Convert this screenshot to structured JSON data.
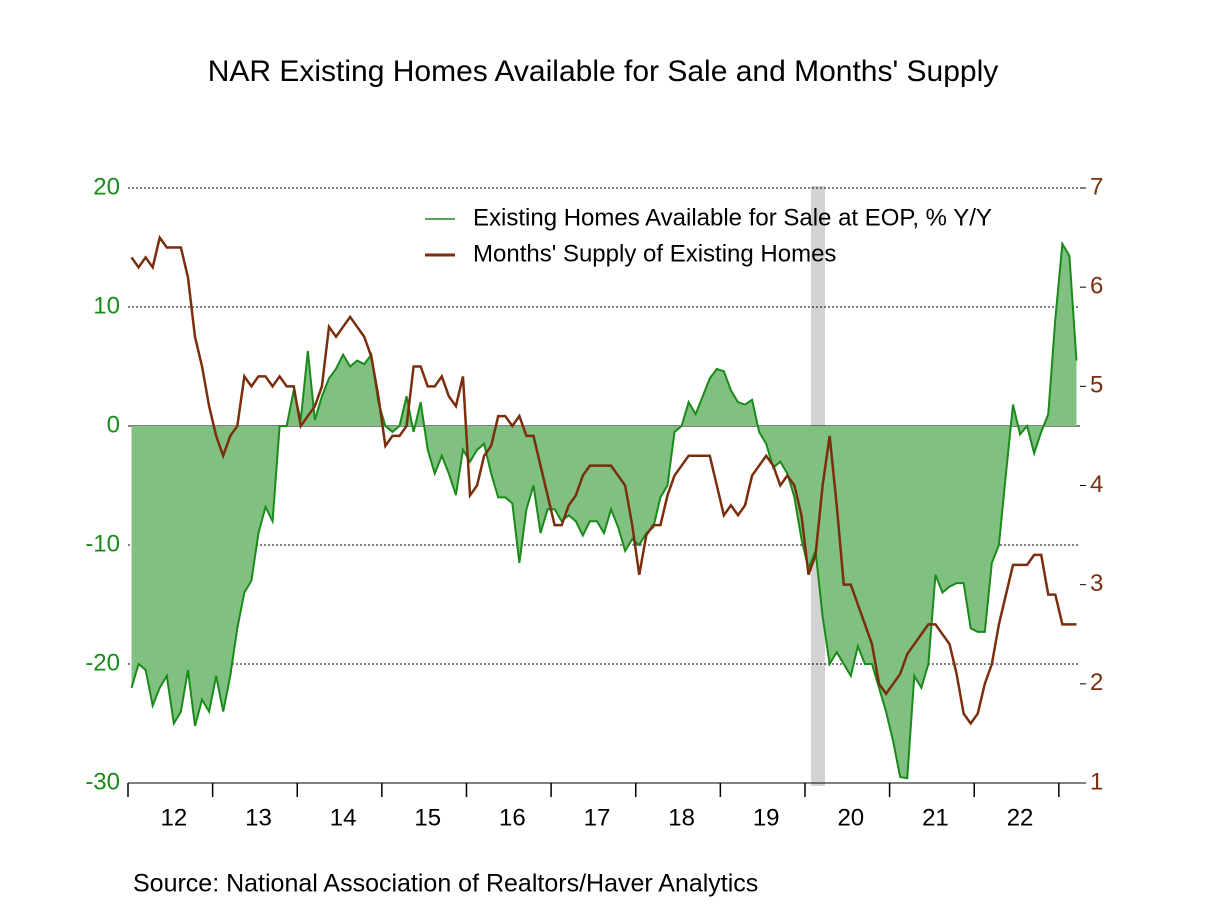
{
  "chart_data": {
    "type": "area",
    "title": "NAR Existing Homes Available for Sale and Months' Supply",
    "source": "Source:  National Association of Realtors/Haver Analytics",
    "categories": [
      null,
      null,
      null,
      null,
      null,
      null,
      "12",
      null,
      null,
      null,
      null,
      null,
      null,
      null,
      null,
      null,
      null,
      null,
      "13",
      null,
      null,
      null,
      null,
      null,
      null,
      null,
      null,
      null,
      null,
      null,
      "14",
      null,
      null,
      null,
      null,
      null,
      null,
      null,
      null,
      null,
      null,
      null,
      "15",
      null,
      null,
      null,
      null,
      null,
      null,
      null,
      null,
      null,
      null,
      null,
      "16",
      null,
      null,
      null,
      null,
      null,
      null,
      null,
      null,
      null,
      null,
      null,
      "17",
      null,
      null,
      null,
      null,
      null,
      null,
      null,
      null,
      null,
      null,
      null,
      "18",
      null,
      null,
      null,
      null,
      null,
      null,
      null,
      null,
      null,
      null,
      null,
      "19",
      null,
      null,
      null,
      null,
      null,
      null,
      null,
      null,
      null,
      null,
      null,
      "20",
      null,
      null,
      null,
      null,
      null,
      null,
      null,
      null,
      null,
      null,
      null,
      "21",
      null,
      null,
      null,
      null,
      null,
      null,
      null,
      null,
      null,
      null,
      null,
      "22",
      null,
      null,
      null,
      null,
      null,
      null,
      null,
      null
    ],
    "series": [
      {
        "name": "Existing Homes Available for Sale at EOP, % Y/Y",
        "type": "area",
        "axis": "y",
        "color": "#1a8a1a",
        "fill": "#80c080",
        "values": [
          -22,
          -20,
          -20.5,
          -23.5,
          -22,
          -21,
          -25,
          -24,
          -20.5,
          -25.2,
          -23,
          -24,
          -21,
          -24,
          -21,
          -17,
          -14,
          -13,
          -9,
          -6.8,
          -8,
          0,
          0,
          3,
          0.5,
          6.3,
          0.5,
          2.5,
          4,
          4.8,
          6,
          5,
          5.5,
          5.2,
          6,
          2,
          0,
          -0.5,
          0,
          2.5,
          -0.5,
          2,
          -2,
          -4,
          -2.5,
          -4,
          -5.8,
          -2,
          -3,
          -2,
          -1.5,
          -4,
          -6,
          -6,
          -6.5,
          -11.5,
          -7,
          -5,
          -9,
          -7,
          -7,
          -8,
          -7.5,
          -8,
          -9.2,
          -8,
          -8,
          -9,
          -7,
          -8.5,
          -10.5,
          -9.5,
          -10,
          -9,
          -8.5,
          -6,
          -5,
          -0.5,
          0,
          2,
          1,
          2.5,
          4,
          4.8,
          4.6,
          3,
          2,
          1.8,
          2.2,
          -0.5,
          -1.5,
          -3.5,
          -3,
          -4,
          -6,
          -9.5,
          -12,
          -10.5,
          -16,
          -20,
          -19,
          -20,
          -21,
          -18.5,
          -20,
          -20,
          -22,
          -24,
          -26.5,
          -29.5,
          -29.6,
          -21,
          -22,
          -20,
          -12.5,
          -14,
          -13.5,
          -13.2,
          -13.2,
          -17,
          -17.3,
          -17.3,
          -11.5,
          -10,
          -4,
          1.8,
          -0.7,
          0,
          -2.3,
          -0.5,
          1,
          9,
          15.3,
          14.3,
          5.5
        ]
      },
      {
        "name": "Months' Supply of Existing Homes",
        "type": "line",
        "axis": "y2",
        "color": "#7a2e0e",
        "values": [
          6.3,
          6.2,
          6.3,
          6.2,
          6.5,
          6.4,
          6.4,
          6.4,
          6.1,
          5.5,
          5.2,
          4.8,
          4.5,
          4.3,
          4.5,
          4.6,
          5.1,
          5.0,
          5.1,
          5.1,
          5.0,
          5.1,
          5.0,
          5.0,
          4.6,
          4.7,
          4.8,
          5.0,
          5.6,
          5.5,
          5.6,
          5.7,
          5.6,
          5.5,
          5.3,
          4.9,
          4.4,
          4.5,
          4.5,
          4.6,
          5.2,
          5.2,
          5.0,
          5.0,
          5.1,
          4.9,
          4.8,
          5.1,
          3.9,
          4.0,
          4.3,
          4.4,
          4.7,
          4.7,
          4.6,
          4.7,
          4.5,
          4.5,
          4.2,
          3.9,
          3.6,
          3.6,
          3.8,
          3.9,
          4.1,
          4.2,
          4.2,
          4.2,
          4.2,
          4.1,
          4.0,
          3.6,
          3.1,
          3.5,
          3.6,
          3.6,
          3.9,
          4.1,
          4.2,
          4.3,
          4.3,
          4.3,
          4.3,
          4.0,
          3.7,
          3.8,
          3.7,
          3.8,
          4.1,
          4.2,
          4.3,
          4.2,
          4.0,
          4.1,
          4.0,
          3.7,
          3.1,
          3.3,
          4.0,
          4.5,
          3.8,
          3.0,
          3.0,
          2.8,
          2.6,
          2.4,
          2.0,
          1.9,
          2.0,
          2.1,
          2.3,
          2.4,
          2.5,
          2.6,
          2.6,
          2.5,
          2.4,
          2.1,
          1.7,
          1.6,
          1.7,
          2.0,
          2.2,
          2.6,
          2.9,
          3.2,
          3.2,
          3.2,
          3.3,
          3.3,
          2.9,
          2.9,
          2.6,
          2.6,
          2.6
        ]
      }
    ],
    "ylim": [
      -30,
      20
    ],
    "yticks": [
      -30,
      -20,
      -10,
      0,
      10,
      20
    ],
    "y2lim": [
      1,
      7
    ],
    "y2ticks": [
      1,
      2,
      3,
      4,
      5,
      6,
      7
    ],
    "grid": true,
    "legend": "top-right"
  }
}
